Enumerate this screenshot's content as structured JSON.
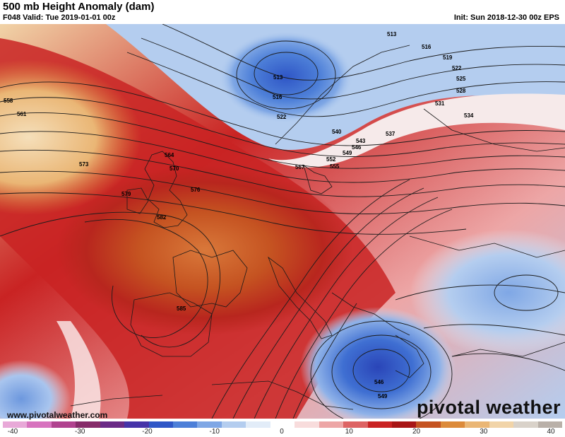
{
  "header": {
    "title": "500 mb Height Anomaly (dam)",
    "valid": "F048 Valid: Tue 2019-01-01 00z",
    "init": "Init: Sun 2018-12-30 00z EPS"
  },
  "footer": {
    "url": "www.pivotalweather.com",
    "brand": "pivotal weather"
  },
  "colorbar": {
    "ticks": [
      "-40",
      "-30",
      "-20",
      "-10",
      "0",
      "10",
      "20",
      "30",
      "40"
    ],
    "colors": [
      "#e8a9d8",
      "#d773be",
      "#b0438f",
      "#862c6a",
      "#6a2a86",
      "#4533a8",
      "#2f56c6",
      "#4d7fd8",
      "#7fa7e5",
      "#b4cdef",
      "#e2ecf8",
      "#ffffff",
      "#f8dcdc",
      "#eda6a6",
      "#dd6363",
      "#c92323",
      "#a81616",
      "#c55321",
      "#dc8a3a",
      "#eab675",
      "#f1d4a8",
      "#d9d2c9",
      "#b9b0a8"
    ]
  },
  "map": {
    "contour_labels": [
      "513",
      "516",
      "519",
      "522",
      "525",
      "528",
      "531",
      "534",
      "537",
      "540",
      "543",
      "546",
      "549",
      "552",
      "555",
      "558",
      "561",
      "564",
      "567",
      "570",
      "573",
      "576",
      "579",
      "582",
      "585",
      "513",
      "516",
      "522",
      "546",
      "549"
    ]
  }
}
